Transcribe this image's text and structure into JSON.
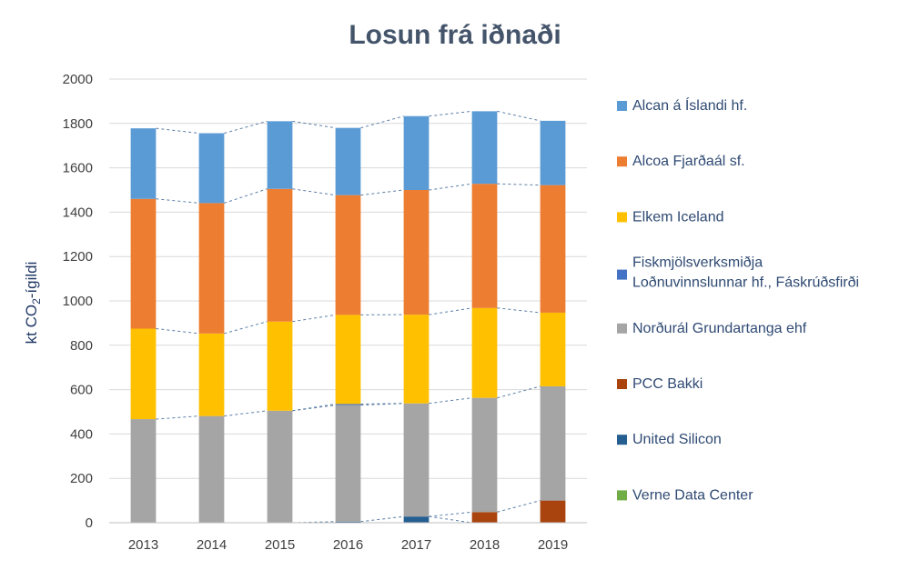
{
  "chart_data": {
    "type": "bar",
    "stacked": true,
    "title": "Losun frá iðnaði",
    "ylabel": {
      "prefix": "kt CO",
      "sub": "2",
      "suffix": "-ígildi"
    },
    "xlabel": "",
    "ylim": [
      0,
      2000
    ],
    "yticks": [
      0,
      200,
      400,
      600,
      800,
      1000,
      1200,
      1400,
      1600,
      1800,
      2000
    ],
    "grid": true,
    "legend_position": "right",
    "categories": [
      "2013",
      "2014",
      "2015",
      "2016",
      "2017",
      "2018",
      "2019"
    ],
    "series": [
      {
        "name": "Verne Data Center",
        "color": "#70AD47",
        "values": [
          0,
          0,
          0,
          0,
          0,
          0,
          0
        ]
      },
      {
        "name": "United Silicon",
        "color": "#255E91",
        "values": [
          0,
          0,
          0,
          5,
          28,
          0,
          0
        ]
      },
      {
        "name": "PCC Bakki",
        "color": "#A9440E",
        "values": [
          0,
          0,
          0,
          0,
          0,
          48,
          100
        ]
      },
      {
        "name": "Norðurál Grundartanga ehf",
        "color": "#A5A5A5",
        "values": [
          467,
          481,
          505,
          525,
          510,
          515,
          515
        ]
      },
      {
        "name": "Fiskmjölsverksmiðja Loðnuvinnslunnar hf., Fáskrúðsfirði",
        "color": "#4472C4",
        "values": [
          0,
          0,
          0,
          5,
          0,
          0,
          0
        ]
      },
      {
        "name": "Elkem Iceland",
        "color": "#FFC000",
        "values": [
          408,
          372,
          402,
          402,
          400,
          405,
          332
        ]
      },
      {
        "name": "Alcoa Fjarðaál sf.",
        "color": "#ED7D31",
        "values": [
          585,
          588,
          598,
          540,
          562,
          560,
          575
        ]
      },
      {
        "name": "Alcan á Íslandi hf.",
        "color": "#5B9BD5",
        "values": [
          318,
          315,
          305,
          303,
          333,
          327,
          290
        ]
      }
    ],
    "legend_order": [
      {
        "name": "Alcan á Íslandi hf.",
        "color": "#5B9BD5"
      },
      {
        "name": "Alcoa Fjarðaál sf.",
        "color": "#ED7D31"
      },
      {
        "name": "Elkem Iceland",
        "color": "#FFC000"
      },
      {
        "name": "Fiskmjölsverksmiðja Loðnuvinnslunnar hf., Fáskrúðsfirði",
        "lines": [
          "Fiskmjölsverksmiðja",
          "Loðnuvinnslunnar hf., Fáskrúðsfirði"
        ],
        "color": "#4472C4"
      },
      {
        "name": "Norðurál Grundartanga ehf",
        "color": "#A5A5A5"
      },
      {
        "name": "PCC Bakki",
        "color": "#A9440E"
      },
      {
        "name": "United Silicon",
        "color": "#255E91"
      },
      {
        "name": "Verne Data Center",
        "color": "#70AD47"
      }
    ],
    "series_lines": true
  }
}
